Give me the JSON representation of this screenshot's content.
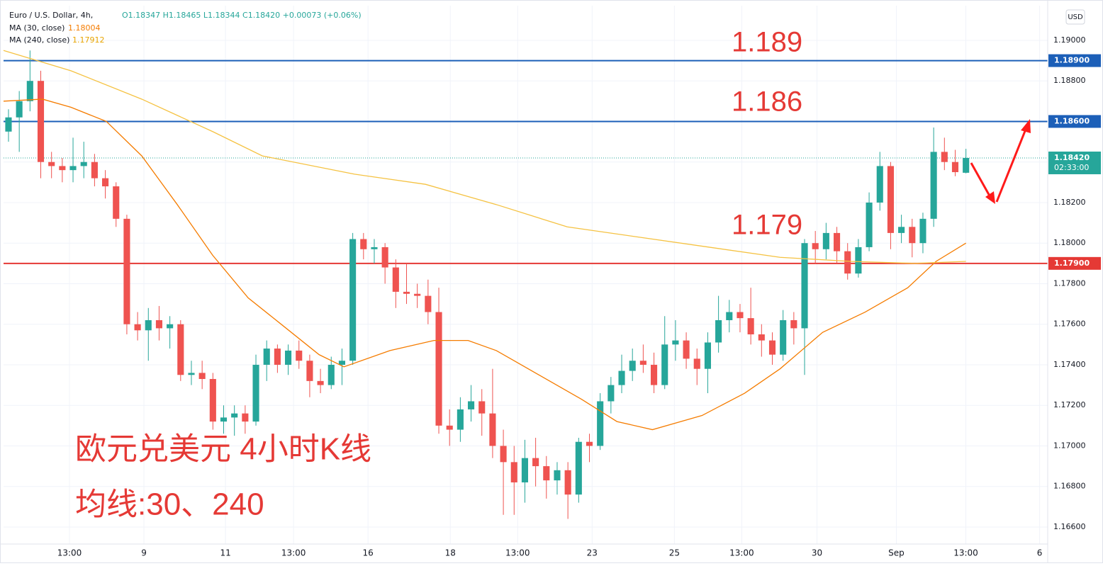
{
  "chart_data": {
    "type": "candlestick",
    "title": "Euro / U.S. Dollar, 4h,",
    "ohlc_text": "O1.18347 H1.18465 L1.18344 C1.18420 +0.00073 (+0.06%)",
    "currency": "USD",
    "up_color": "#26a69a",
    "down_color": "#ef5350",
    "grid": true,
    "xlim": [
      -0.46,
      96.6
    ],
    "ylim": [
      1.16516,
      1.19171
    ],
    "yticks": [
      {
        "value": 1.166,
        "label": "1.16600"
      },
      {
        "value": 1.168,
        "label": "1.16800"
      },
      {
        "value": 1.17,
        "label": "1.17000"
      },
      {
        "value": 1.172,
        "label": "1.17200"
      },
      {
        "value": 1.174,
        "label": "1.17400"
      },
      {
        "value": 1.176,
        "label": "1.17600"
      },
      {
        "value": 1.178,
        "label": "1.17800"
      },
      {
        "value": 1.18,
        "label": "1.18000"
      },
      {
        "value": 1.182,
        "label": "1.18200"
      },
      {
        "value": 1.184,
        "label": "1.18400"
      },
      {
        "value": 1.186,
        "label": "1.18600"
      },
      {
        "value": 1.188,
        "label": "1.18800"
      },
      {
        "value": 1.19,
        "label": "1.19000"
      }
    ],
    "xticks": [
      {
        "value": 5.67,
        "label": "13:00"
      },
      {
        "value": 12.59,
        "label": "9"
      },
      {
        "value": 20.17,
        "label": "11"
      },
      {
        "value": 26.5,
        "label": "13:00"
      },
      {
        "value": 33.42,
        "label": "16"
      },
      {
        "value": 41.07,
        "label": "18"
      },
      {
        "value": 47.33,
        "label": "13:00"
      },
      {
        "value": 54.25,
        "label": "23"
      },
      {
        "value": 61.9,
        "label": "25"
      },
      {
        "value": 68.16,
        "label": "13:00"
      },
      {
        "value": 75.15,
        "label": "30"
      },
      {
        "value": 82.53,
        "label": "Sep"
      },
      {
        "value": 88.99,
        "label": "13:00"
      },
      {
        "value": 95.85,
        "label": "6"
      }
    ],
    "ohlc": [
      [
        1.1855,
        1.1866,
        1.185,
        1.1862
      ],
      [
        1.1862,
        1.1875,
        1.1845,
        1.187
      ],
      [
        1.187,
        1.1895,
        1.1865,
        1.188
      ],
      [
        1.188,
        1.1885,
        1.1832,
        1.184
      ],
      [
        1.184,
        1.1845,
        1.1832,
        1.1838
      ],
      [
        1.1838,
        1.1842,
        1.183,
        1.1836
      ],
      [
        1.1836,
        1.1852,
        1.183,
        1.1838
      ],
      [
        1.1838,
        1.185,
        1.1832,
        1.184
      ],
      [
        1.184,
        1.1844,
        1.1828,
        1.1832
      ],
      [
        1.1832,
        1.1836,
        1.1822,
        1.1828
      ],
      [
        1.1828,
        1.183,
        1.1808,
        1.1812
      ],
      [
        1.1812,
        1.1814,
        1.1755,
        1.176
      ],
      [
        1.176,
        1.1766,
        1.1752,
        1.1757
      ],
      [
        1.1757,
        1.1768,
        1.1742,
        1.1762
      ],
      [
        1.1762,
        1.1769,
        1.1752,
        1.1758
      ],
      [
        1.1758,
        1.1764,
        1.1748,
        1.176
      ],
      [
        1.176,
        1.1762,
        1.1732,
        1.1735
      ],
      [
        1.1735,
        1.1742,
        1.173,
        1.1736
      ],
      [
        1.1736,
        1.1742,
        1.1728,
        1.1733
      ],
      [
        1.1733,
        1.1736,
        1.1708,
        1.1712
      ],
      [
        1.1712,
        1.172,
        1.1706,
        1.1714
      ],
      [
        1.1714,
        1.172,
        1.1705,
        1.1716
      ],
      [
        1.1716,
        1.172,
        1.1706,
        1.1712
      ],
      [
        1.1712,
        1.1745,
        1.171,
        1.174
      ],
      [
        1.174,
        1.1752,
        1.1732,
        1.1748
      ],
      [
        1.1748,
        1.175,
        1.1736,
        1.174
      ],
      [
        1.174,
        1.175,
        1.1735,
        1.1747
      ],
      [
        1.1747,
        1.1752,
        1.1738,
        1.1742
      ],
      [
        1.1742,
        1.1745,
        1.1724,
        1.1732
      ],
      [
        1.1732,
        1.1738,
        1.1726,
        1.173
      ],
      [
        1.173,
        1.1744,
        1.1728,
        1.174
      ],
      [
        1.174,
        1.1748,
        1.173,
        1.1742
      ],
      [
        1.1742,
        1.1805,
        1.174,
        1.1802
      ],
      [
        1.1802,
        1.1805,
        1.1792,
        1.1797
      ],
      [
        1.1797,
        1.1802,
        1.179,
        1.1798
      ],
      [
        1.1798,
        1.18,
        1.178,
        1.1788
      ],
      [
        1.1788,
        1.1792,
        1.1768,
        1.1776
      ],
      [
        1.1776,
        1.179,
        1.177,
        1.1775
      ],
      [
        1.1775,
        1.178,
        1.1768,
        1.1774
      ],
      [
        1.1774,
        1.1782,
        1.176,
        1.1766
      ],
      [
        1.1766,
        1.1778,
        1.1706,
        1.171
      ],
      [
        1.171,
        1.1718,
        1.17,
        1.1708
      ],
      [
        1.1708,
        1.1724,
        1.1702,
        1.1718
      ],
      [
        1.1718,
        1.173,
        1.1712,
        1.1722
      ],
      [
        1.1722,
        1.1728,
        1.1705,
        1.1716
      ],
      [
        1.1716,
        1.1738,
        1.1694,
        1.17
      ],
      [
        1.17,
        1.1708,
        1.1666,
        1.1692
      ],
      [
        1.1692,
        1.17,
        1.1666,
        1.1682
      ],
      [
        1.1682,
        1.1703,
        1.1672,
        1.1694
      ],
      [
        1.1694,
        1.1704,
        1.168,
        1.169
      ],
      [
        1.169,
        1.1695,
        1.1674,
        1.1683
      ],
      [
        1.1683,
        1.1692,
        1.1676,
        1.1688
      ],
      [
        1.1688,
        1.1692,
        1.1664,
        1.1676
      ],
      [
        1.1676,
        1.1704,
        1.1672,
        1.1702
      ],
      [
        1.1702,
        1.1706,
        1.1692,
        1.17
      ],
      [
        1.17,
        1.1726,
        1.1698,
        1.1722
      ],
      [
        1.1722,
        1.1734,
        1.1716,
        1.173
      ],
      [
        1.173,
        1.1745,
        1.1726,
        1.1737
      ],
      [
        1.1737,
        1.1748,
        1.1732,
        1.1742
      ],
      [
        1.1742,
        1.175,
        1.1736,
        1.174
      ],
      [
        1.174,
        1.1746,
        1.1726,
        1.173
      ],
      [
        1.173,
        1.1764,
        1.1728,
        1.175
      ],
      [
        1.175,
        1.1762,
        1.1742,
        1.1752
      ],
      [
        1.1752,
        1.1756,
        1.1738,
        1.1743
      ],
      [
        1.1743,
        1.1748,
        1.173,
        1.1738
      ],
      [
        1.1738,
        1.1756,
        1.1726,
        1.1751
      ],
      [
        1.1751,
        1.1774,
        1.1746,
        1.1762
      ],
      [
        1.1762,
        1.1772,
        1.1756,
        1.1766
      ],
      [
        1.1766,
        1.177,
        1.1756,
        1.1763
      ],
      [
        1.1763,
        1.1778,
        1.175,
        1.1755
      ],
      [
        1.1755,
        1.176,
        1.1744,
        1.1752
      ],
      [
        1.1752,
        1.1756,
        1.174,
        1.1745
      ],
      [
        1.1745,
        1.1767,
        1.1742,
        1.1762
      ],
      [
        1.1762,
        1.1766,
        1.175,
        1.1758
      ],
      [
        1.1758,
        1.1802,
        1.1735,
        1.18
      ],
      [
        1.18,
        1.1806,
        1.179,
        1.1797
      ],
      [
        1.1797,
        1.181,
        1.1792,
        1.1805
      ],
      [
        1.1805,
        1.1808,
        1.179,
        1.1796
      ],
      [
        1.1796,
        1.18,
        1.1782,
        1.1785
      ],
      [
        1.1785,
        1.1802,
        1.1783,
        1.1798
      ],
      [
        1.1798,
        1.1825,
        1.1796,
        1.182
      ],
      [
        1.182,
        1.1845,
        1.1816,
        1.1838
      ],
      [
        1.1838,
        1.184,
        1.1797,
        1.1805
      ],
      [
        1.1805,
        1.1814,
        1.18,
        1.1808
      ],
      [
        1.1808,
        1.1812,
        1.1793,
        1.18
      ],
      [
        1.18,
        1.1815,
        1.1795,
        1.1812
      ],
      [
        1.1812,
        1.1857,
        1.1808,
        1.1845
      ],
      [
        1.1845,
        1.1852,
        1.1836,
        1.184
      ],
      [
        1.184,
        1.1846,
        1.1833,
        1.1835
      ],
      [
        1.18347,
        1.18465,
        1.18344,
        1.1842
      ]
    ],
    "series": [
      {
        "name": "MA (30, close)",
        "color": "#f57c00",
        "last": 1.18004,
        "x": [
          -0.46,
          3.16,
          5.8,
          9.1,
          12.39,
          15.69,
          18.98,
          22.28,
          25.58,
          28.87,
          31.18,
          35.46,
          39.55,
          42.72,
          45.35,
          49.31,
          53.26,
          56.56,
          59.86,
          62.49,
          64.47,
          68.43,
          71.72,
          75.68,
          79.63,
          83.59,
          86.22,
          89.0
        ],
        "values": [
          1.187,
          1.1871,
          1.1867,
          1.186,
          1.1843,
          1.1819,
          1.1794,
          1.1773,
          1.1759,
          1.1745,
          1.1739,
          1.1747,
          1.1752,
          1.1752,
          1.1747,
          1.1735,
          1.1723,
          1.1712,
          1.1708,
          1.1712,
          1.1715,
          1.1726,
          1.1738,
          1.1756,
          1.1766,
          1.1778,
          1.1791,
          1.18
        ]
      },
      {
        "name": "MA (240, close)",
        "color": "#f5c242",
        "last": 1.17912,
        "x": [
          -0.46,
          5.8,
          12.39,
          18.98,
          23.6,
          32.17,
          38.76,
          45.35,
          51.94,
          58.54,
          65.13,
          71.72,
          78.31,
          84.25,
          89.0
        ],
        "values": [
          1.1895,
          1.1885,
          1.1871,
          1.1855,
          1.1843,
          1.1834,
          1.1829,
          1.1819,
          1.1808,
          1.1803,
          1.1798,
          1.1793,
          1.1791,
          1.179,
          1.1791
        ]
      }
    ],
    "levels": [
      {
        "value": 1.189,
        "label": "1.18900",
        "color": "#1c5fb8"
      },
      {
        "value": 1.186,
        "label": "1.18600",
        "color": "#1c5fb8"
      },
      {
        "value": 1.179,
        "label": "1.17900",
        "color": "#e53935"
      }
    ],
    "current": {
      "value": 1.1842,
      "label": "1.18420",
      "countdown": "02:33:00",
      "color": "#26a69a"
    },
    "annotations": [
      "1.189",
      "1.186",
      "1.179"
    ],
    "caption": [
      "欧元兑美元 4小时K线",
      "均线:30、240"
    ]
  }
}
